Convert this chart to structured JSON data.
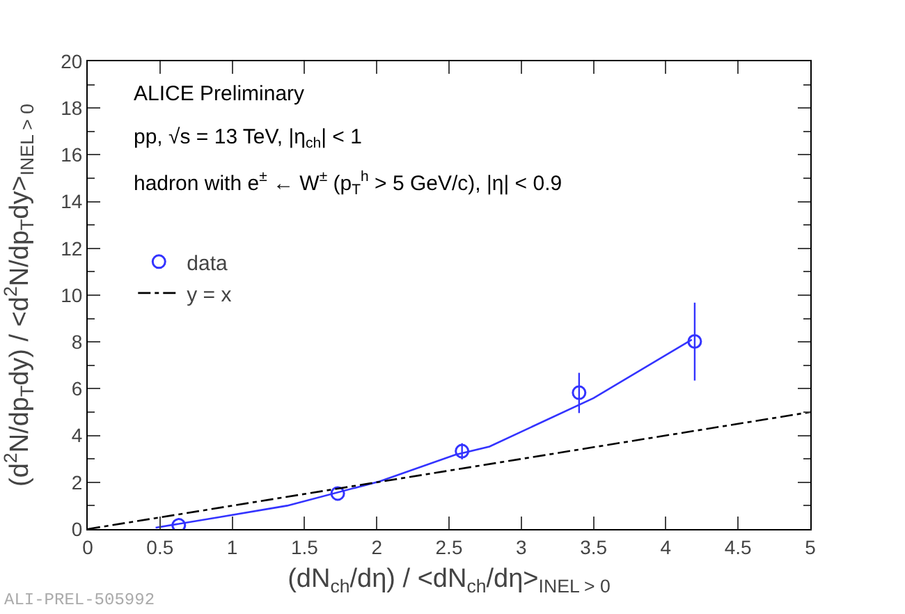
{
  "chart_data": {
    "type": "scatter",
    "xlabel": "(dN$_{ch}$/dη) / <dN$_{ch}$/dη>$_{INEL > 0}$",
    "ylabel": "(d$^{2}$N/dp$_{T}$dy) / <d$^{2}$N/dp$_{T}$dy>$_{INEL > 0}$",
    "xlim": [
      0,
      5
    ],
    "xticks": [
      0,
      0.5,
      1,
      1.5,
      2,
      2.5,
      3,
      3.5,
      4,
      4.5,
      5
    ],
    "ylim": [
      0,
      20
    ],
    "yticks": [
      0,
      2,
      4,
      6,
      8,
      10,
      12,
      14,
      16,
      18,
      20
    ],
    "grid": false,
    "legend": "top left",
    "annotations": [
      "ALICE Preliminary",
      "pp, √s = 13 TeV, |η$_{ch}$| < 1",
      "hadron with e$^{±}$ ← W$^{±}$ (p$_{T}$$^{h}$ > 5 GeV/c), |η| < 0.9",
      "ALI-PREL-505992"
    ],
    "series": [
      {
        "name": "data",
        "type": "scatter",
        "color": "#3333ff",
        "marker": "circle",
        "x": [
          0.63,
          1.73,
          2.59,
          3.4,
          4.2
        ],
        "values": [
          0.16,
          1.52,
          3.33,
          5.83,
          8.02
        ],
        "errors": [
          null,
          null,
          [
            2.98,
            3.67
          ],
          [
            4.96,
            6.68
          ],
          [
            6.35,
            9.68
          ]
        ]
      },
      {
        "type": "line",
        "color": "#3333ff",
        "marker": "none",
        "line_style": "solid",
        "x": [
          0.47,
          0.9,
          1.38,
          2.02,
          2.54,
          2.78,
          3.5,
          4.18
        ],
        "values": [
          0.06,
          0.5,
          1.0,
          2.04,
          3.17,
          3.53,
          5.6,
          8.1
        ]
      },
      {
        "name": "y = x",
        "type": "line",
        "color": "#000000",
        "marker": "none",
        "line_style": "dashed",
        "x": [
          0,
          5
        ],
        "values": [
          0,
          5
        ]
      }
    ]
  }
}
